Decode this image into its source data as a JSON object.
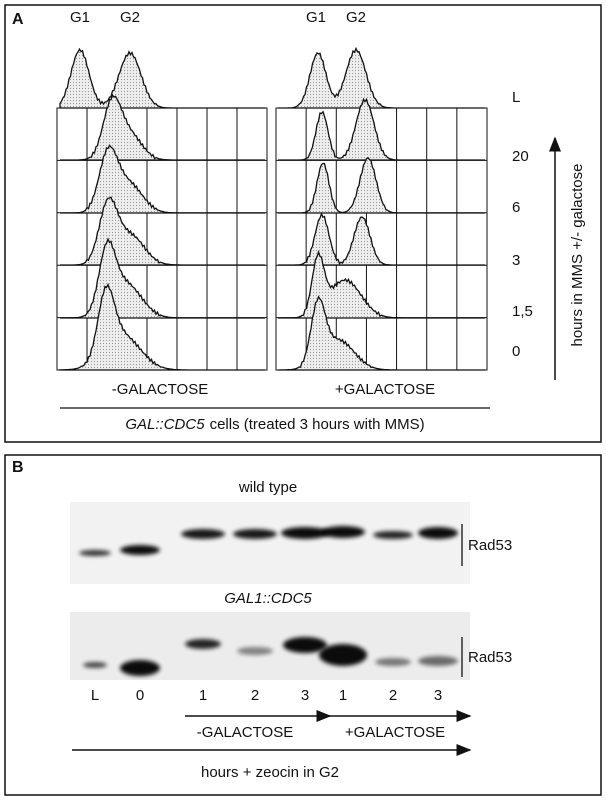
{
  "panel_a": {
    "label": "A",
    "left_peaks": [
      "G1",
      "G2"
    ],
    "right_peaks": [
      "G1",
      "G2"
    ],
    "row_labels": [
      "L",
      "20",
      "6",
      "3",
      "1,5",
      "0"
    ],
    "conditions": [
      "-GALACTOSE",
      "+GALACTOSE"
    ],
    "caption": {
      "strain": "GAL::CDC5",
      "rest": "cells (treated 3 hours with MMS)"
    },
    "axis_label": "hours in MMS +/- galactose"
  },
  "panel_b": {
    "label": "B",
    "blots": [
      {
        "title": "wild type",
        "band": "Rad53"
      },
      {
        "title": "GAL1::CDC5",
        "band": "Rad53"
      }
    ],
    "lanes": [
      "L",
      "0",
      "1",
      "2",
      "3",
      "1",
      "2",
      "3"
    ],
    "conditions": [
      "-GALACTOSE",
      "+GALACTOSE"
    ],
    "axis_label": "hours + zeocin in G2"
  }
}
